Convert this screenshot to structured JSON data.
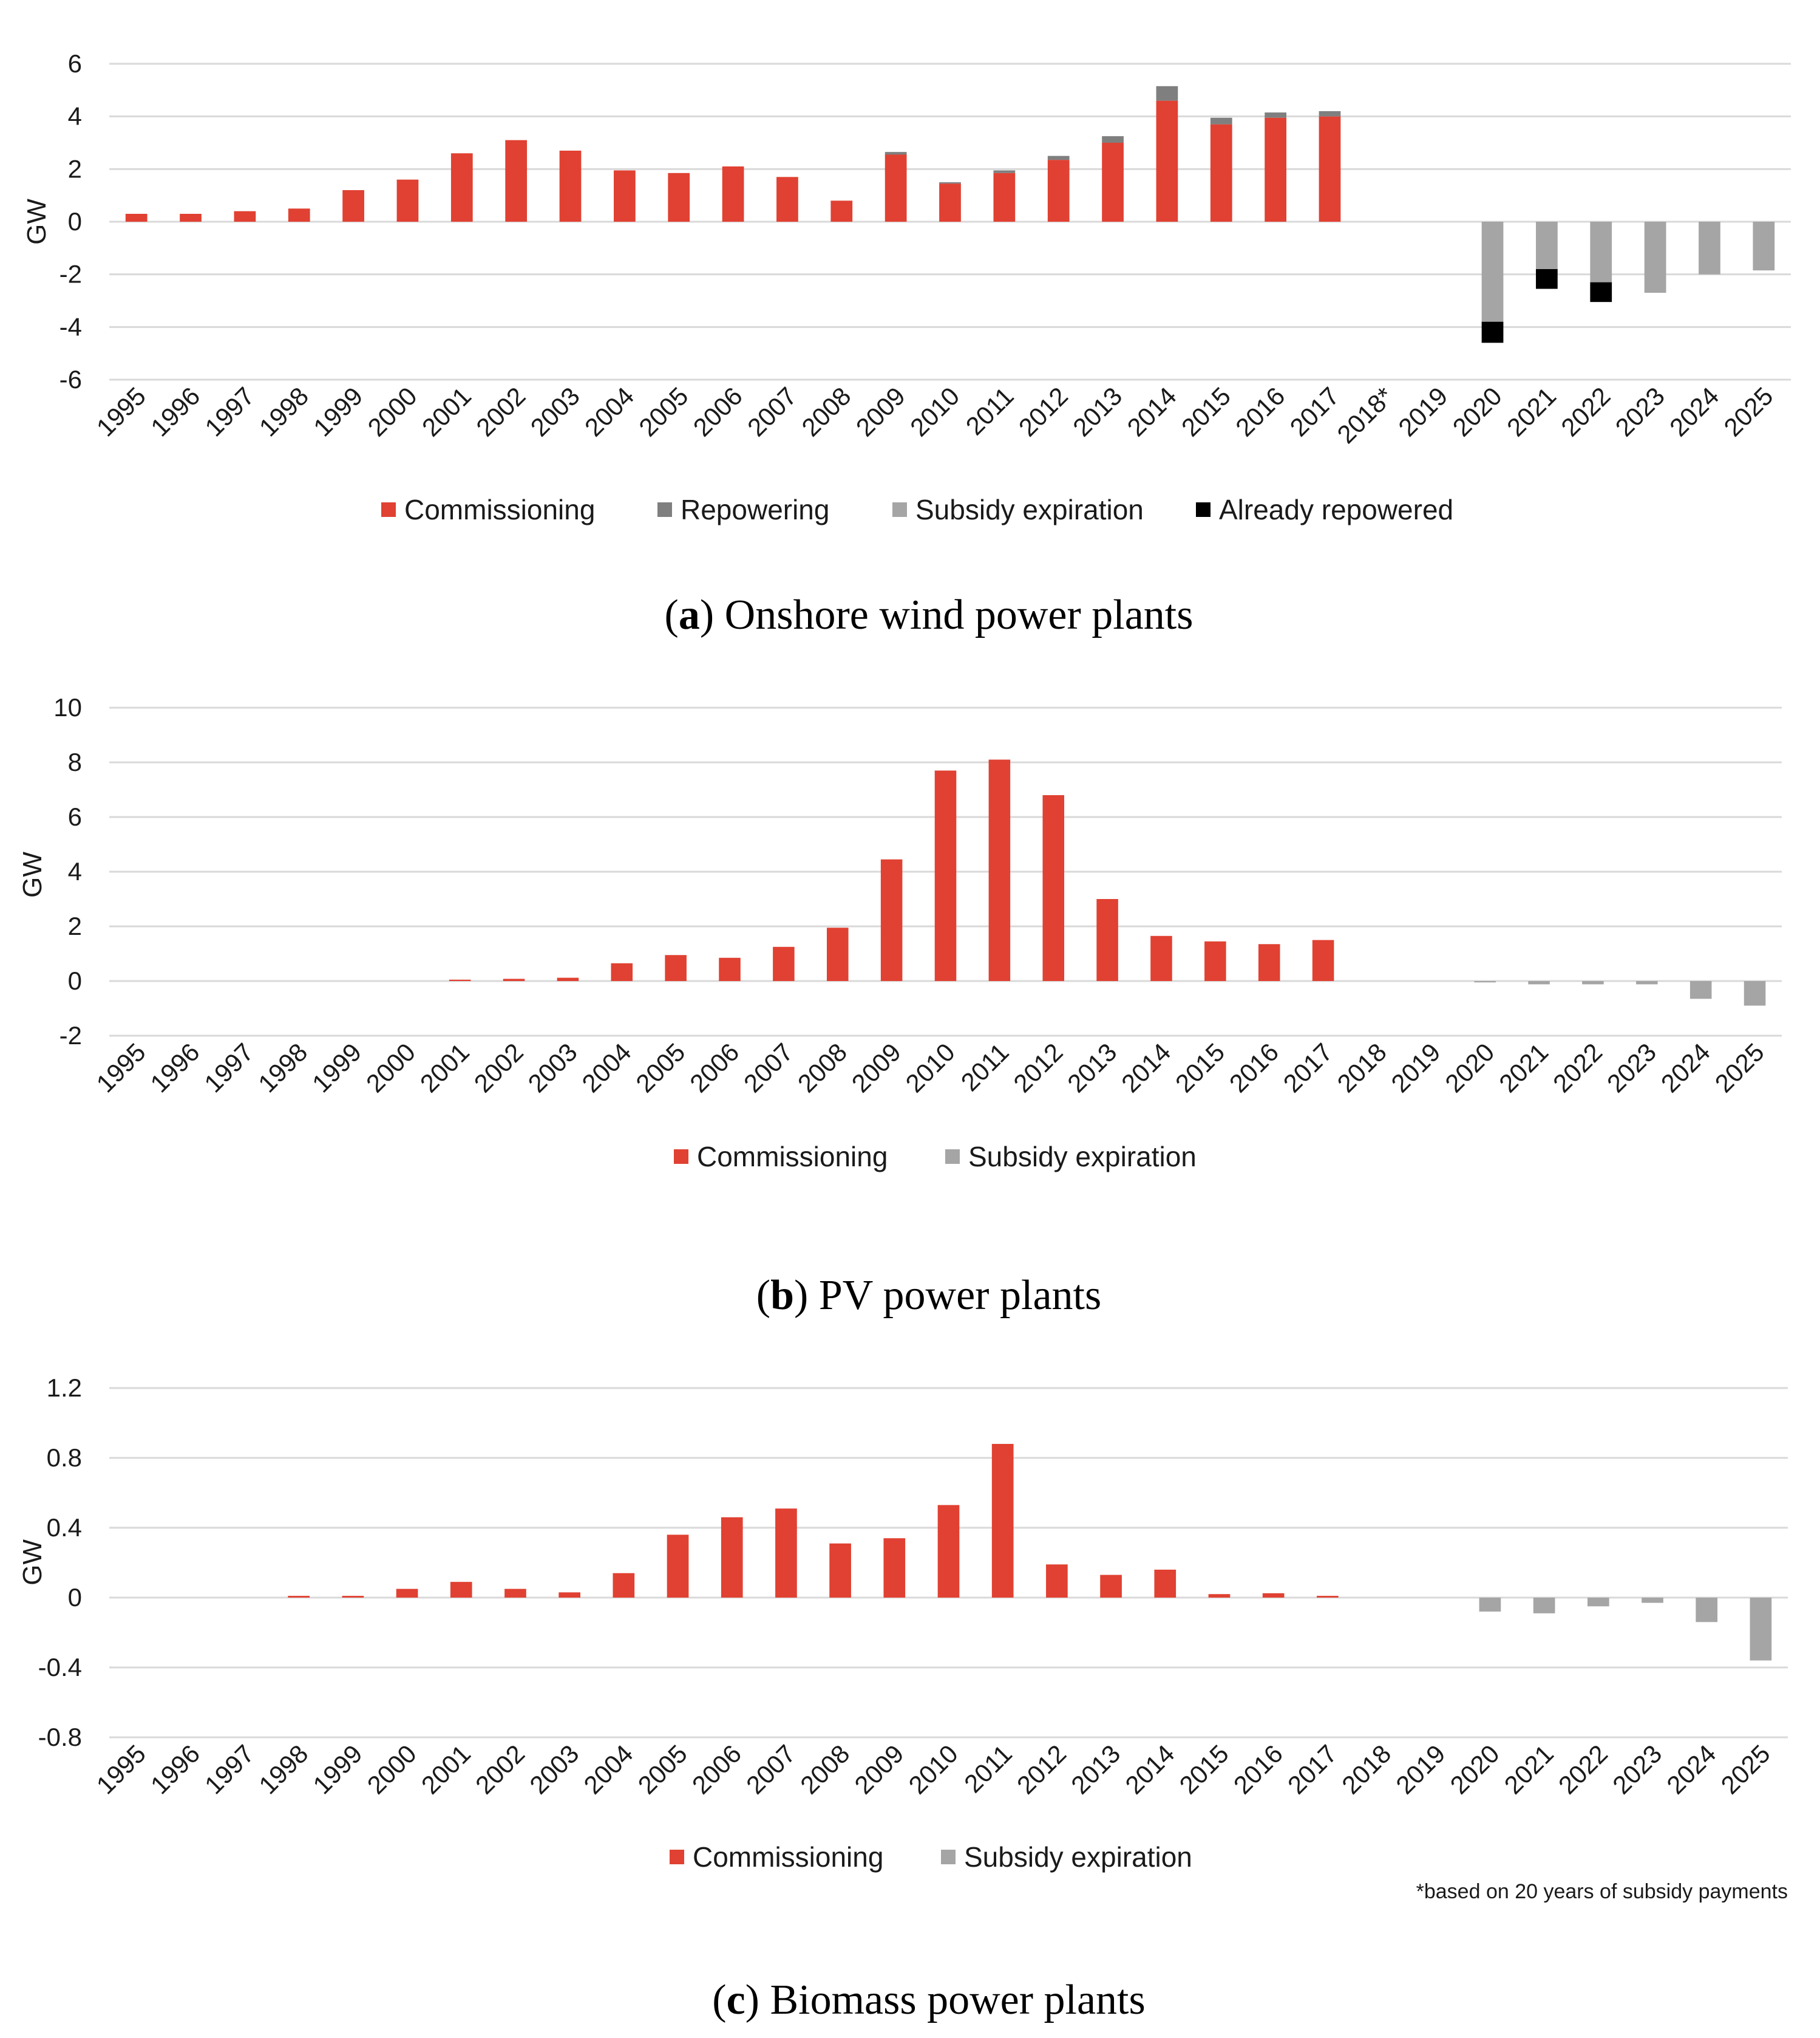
{
  "colors": {
    "commissioning": "#e04132",
    "repowering": "#7f7f7f",
    "subsidy_expiration": "#a5a5a5",
    "already_repowered": "#000000",
    "grid": "#d9d9d9"
  },
  "footnote": "*based on 20 years of subsidy payments",
  "chart_data": [
    {
      "type": "bar",
      "stacked": true,
      "caption_letter": "a",
      "caption_text": " Onshore wind power plants",
      "ylabel": "GW",
      "ylim": [
        -6,
        6
      ],
      "yticks": [
        {
          "value": 6,
          "label": "6"
        },
        {
          "value": 4,
          "label": "4"
        },
        {
          "value": 2,
          "label": "2"
        },
        {
          "value": 0,
          "label": "0"
        },
        {
          "value": -2,
          "label": "-2"
        },
        {
          "value": -4,
          "label": "-4"
        },
        {
          "value": -6,
          "label": "-6"
        }
      ],
      "categories": [
        "1995",
        "1996",
        "1997",
        "1998",
        "1999",
        "2000",
        "2001",
        "2002",
        "2003",
        "2004",
        "2005",
        "2006",
        "2007",
        "2008",
        "2009",
        "2010",
        "2011",
        "2012",
        "2013",
        "2014",
        "2015",
        "2016",
        "2017",
        "2018*",
        "2019",
        "2020",
        "2021",
        "2022",
        "2023",
        "2024",
        "2025"
      ],
      "legend_position": "bottom-center",
      "series": [
        {
          "name": "Commissioning",
          "color_key": "commissioning",
          "values": [
            0.3,
            0.3,
            0.4,
            0.5,
            1.2,
            1.6,
            2.6,
            3.1,
            2.7,
            1.95,
            1.85,
            2.1,
            1.7,
            0.8,
            2.55,
            1.45,
            1.85,
            2.35,
            3.0,
            4.6,
            3.7,
            3.95,
            4.0,
            0,
            0,
            0,
            0,
            0,
            0,
            0,
            0
          ]
        },
        {
          "name": "Repowering",
          "color_key": "repowering",
          "values": [
            0,
            0,
            0,
            0,
            0,
            0,
            0,
            0,
            0,
            0,
            0,
            0,
            0,
            0,
            0.1,
            0.05,
            0.1,
            0.15,
            0.25,
            0.55,
            0.25,
            0.2,
            0.2,
            0,
            0,
            0,
            0,
            0,
            0,
            0,
            0
          ]
        },
        {
          "name": "Subsidy expiration",
          "color_key": "subsidy_expiration",
          "values": [
            0,
            0,
            0,
            0,
            0,
            0,
            0,
            0,
            0,
            0,
            0,
            0,
            0,
            0,
            0,
            0,
            0,
            0,
            0,
            0,
            0,
            0,
            0,
            0,
            0,
            -3.8,
            -1.8,
            -2.3,
            -2.7,
            -2.0,
            -1.85
          ]
        },
        {
          "name": "Already repowered",
          "color_key": "already_repowered",
          "values": [
            0,
            0,
            0,
            0,
            0,
            0,
            0,
            0,
            0,
            0,
            0,
            0,
            0,
            0,
            0,
            0,
            0,
            0,
            0,
            0,
            0,
            0,
            0,
            0,
            0,
            -0.8,
            -0.75,
            -0.75,
            0,
            0,
            0
          ]
        }
      ]
    },
    {
      "type": "bar",
      "stacked": true,
      "caption_letter": "b",
      "caption_text": " PV power plants",
      "ylabel": "GW",
      "ylim": [
        -2,
        10
      ],
      "yticks": [
        {
          "value": 10,
          "label": "10"
        },
        {
          "value": 8,
          "label": "8"
        },
        {
          "value": 6,
          "label": "6"
        },
        {
          "value": 4,
          "label": "4"
        },
        {
          "value": 2,
          "label": "2"
        },
        {
          "value": 0,
          "label": "0"
        },
        {
          "value": -2,
          "label": "-2"
        }
      ],
      "categories": [
        "1995",
        "1996",
        "1997",
        "1998",
        "1999",
        "2000",
        "2001",
        "2002",
        "2003",
        "2004",
        "2005",
        "2006",
        "2007",
        "2008",
        "2009",
        "2010",
        "2011",
        "2012",
        "2013",
        "2014",
        "2015",
        "2016",
        "2017",
        "2018",
        "2019",
        "2020",
        "2021",
        "2022",
        "2023",
        "2024",
        "2025"
      ],
      "legend_position": "bottom-center",
      "series": [
        {
          "name": "Commissioning",
          "color_key": "commissioning",
          "values": [
            0,
            0,
            0,
            0,
            0,
            0,
            0.05,
            0.08,
            0.12,
            0.65,
            0.95,
            0.85,
            1.25,
            1.95,
            4.45,
            7.7,
            8.1,
            6.8,
            3.0,
            1.65,
            1.45,
            1.35,
            1.5,
            0,
            0,
            0,
            0,
            0,
            0,
            0,
            0
          ]
        },
        {
          "name": "Subsidy expiration",
          "color_key": "subsidy_expiration",
          "values": [
            0,
            0,
            0,
            0,
            0,
            0,
            0,
            0,
            0,
            0,
            0,
            0,
            0,
            0,
            0,
            0,
            0,
            0,
            0,
            0,
            0,
            0,
            0,
            0,
            0,
            -0.05,
            -0.12,
            -0.12,
            -0.12,
            -0.65,
            -0.9
          ]
        }
      ]
    },
    {
      "type": "bar",
      "stacked": true,
      "caption_letter": "c",
      "caption_text": " Biomass power plants",
      "ylabel": "GW",
      "ylim": [
        -0.8,
        1.2
      ],
      "yticks": [
        {
          "value": 1.2,
          "label": "1.2"
        },
        {
          "value": 0.8,
          "label": "0.8"
        },
        {
          "value": 0.4,
          "label": "0.4"
        },
        {
          "value": 0,
          "label": "0"
        },
        {
          "value": -0.4,
          "label": "-0.4"
        },
        {
          "value": -0.8,
          "label": "-0.8"
        }
      ],
      "categories": [
        "1995",
        "1996",
        "1997",
        "1998",
        "1999",
        "2000",
        "2001",
        "2002",
        "2003",
        "2004",
        "2005",
        "2006",
        "2007",
        "2008",
        "2009",
        "2010",
        "2011",
        "2012",
        "2013",
        "2014",
        "2015",
        "2016",
        "2017",
        "2018",
        "2019",
        "2020",
        "2021",
        "2022",
        "2023",
        "2024",
        "2025"
      ],
      "legend_position": "bottom-center",
      "series": [
        {
          "name": "Commissioning",
          "color_key": "commissioning",
          "values": [
            0,
            0,
            0,
            0.01,
            0.01,
            0.05,
            0.09,
            0.05,
            0.03,
            0.14,
            0.36,
            0.46,
            0.51,
            0.31,
            0.34,
            0.53,
            0.88,
            0.19,
            0.13,
            0.16,
            0.02,
            0.025,
            0.01,
            0,
            0,
            0,
            0,
            0,
            0,
            0,
            0
          ]
        },
        {
          "name": "Subsidy expiration",
          "color_key": "subsidy_expiration",
          "values": [
            0,
            0,
            0,
            0,
            0,
            0,
            0,
            0,
            0,
            0,
            0,
            0,
            0,
            0,
            0,
            0,
            0,
            0,
            0,
            0,
            0,
            0,
            0,
            0,
            0,
            -0.08,
            -0.09,
            -0.05,
            -0.03,
            -0.14,
            -0.36
          ]
        }
      ]
    }
  ]
}
